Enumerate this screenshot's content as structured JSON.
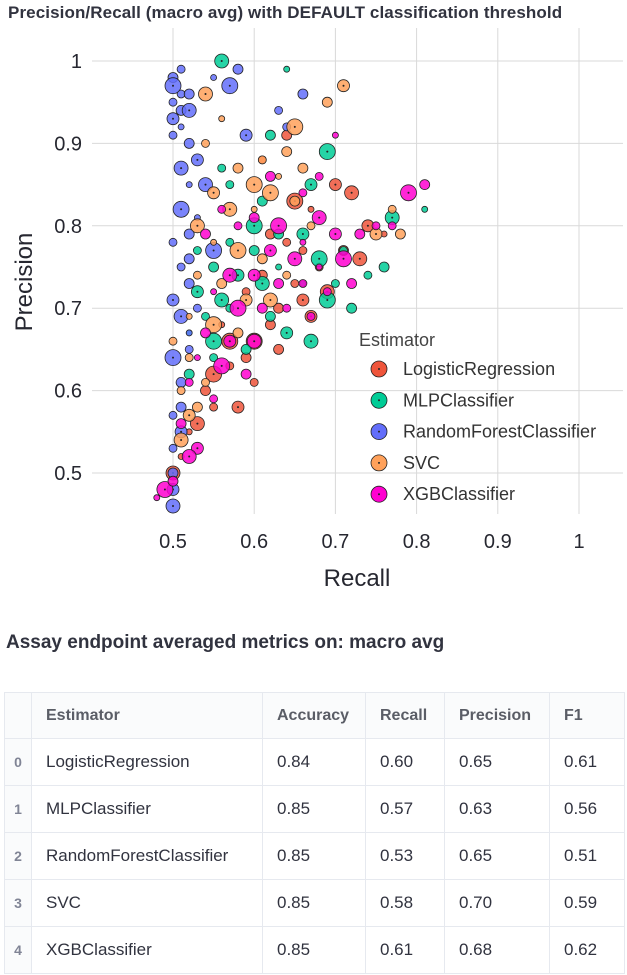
{
  "page": {
    "chart_title": "Precision/Recall (macro avg) with DEFAULT classification threshold",
    "table_title": "Assay endpoint averaged metrics on: macro avg"
  },
  "chart_data": {
    "type": "scatter",
    "xlabel": "Recall",
    "ylabel": "Precision",
    "xlim": [
      0.45,
      0.85
    ],
    "ylim": [
      0.45,
      1.0
    ],
    "xticks": [
      "0.5",
      "0.6",
      "0.7",
      "0.8",
      "0.9",
      "1"
    ],
    "yticks": [
      "0.5",
      "0.6",
      "0.7",
      "0.8",
      "0.9",
      "1"
    ],
    "grid": true,
    "legend_title": "Estimator",
    "legend_position": "right",
    "series": [
      {
        "name": "LogisticRegression",
        "color": "#ef553b",
        "points": [
          [
            0.61,
            0.88
          ],
          [
            0.64,
            0.91
          ],
          [
            0.7,
            0.85
          ],
          [
            0.72,
            0.84
          ],
          [
            0.67,
            0.82
          ],
          [
            0.65,
            0.83
          ],
          [
            0.62,
            0.79
          ],
          [
            0.66,
            0.77
          ],
          [
            0.59,
            0.72
          ],
          [
            0.63,
            0.7
          ],
          [
            0.66,
            0.71
          ],
          [
            0.69,
            0.72
          ],
          [
            0.56,
            0.68
          ],
          [
            0.6,
            0.66
          ],
          [
            0.63,
            0.65
          ],
          [
            0.57,
            0.63
          ],
          [
            0.6,
            0.61
          ],
          [
            0.54,
            0.6
          ],
          [
            0.58,
            0.58
          ],
          [
            0.53,
            0.56
          ],
          [
            0.51,
            0.52
          ],
          [
            0.55,
            0.62
          ],
          [
            0.62,
            0.68
          ],
          [
            0.65,
            0.73
          ],
          [
            0.68,
            0.75
          ],
          [
            0.71,
            0.77
          ],
          [
            0.74,
            0.8
          ],
          [
            0.5,
            0.5
          ],
          [
            0.52,
            0.55
          ],
          [
            0.57,
            0.66
          ],
          [
            0.61,
            0.74
          ],
          [
            0.64,
            0.78
          ],
          [
            0.55,
            0.58
          ],
          [
            0.59,
            0.64
          ],
          [
            0.67,
            0.69
          ],
          [
            0.73,
            0.76
          ],
          [
            0.76,
            0.79
          ]
        ]
      },
      {
        "name": "MLPClassifier",
        "color": "#00cc96",
        "points": [
          [
            0.56,
            1.0
          ],
          [
            0.64,
            0.99
          ],
          [
            0.69,
            0.89
          ],
          [
            0.62,
            0.91
          ],
          [
            0.56,
            0.87
          ],
          [
            0.57,
            0.85
          ],
          [
            0.61,
            0.83
          ],
          [
            0.67,
            0.85
          ],
          [
            0.77,
            0.81
          ],
          [
            0.81,
            0.82
          ],
          [
            0.6,
            0.8
          ],
          [
            0.63,
            0.79
          ],
          [
            0.71,
            0.77
          ],
          [
            0.74,
            0.74
          ],
          [
            0.55,
            0.75
          ],
          [
            0.58,
            0.74
          ],
          [
            0.61,
            0.73
          ],
          [
            0.66,
            0.73
          ],
          [
            0.69,
            0.71
          ],
          [
            0.72,
            0.7
          ],
          [
            0.54,
            0.69
          ],
          [
            0.57,
            0.7
          ],
          [
            0.62,
            0.69
          ],
          [
            0.64,
            0.67
          ],
          [
            0.67,
            0.66
          ],
          [
            0.52,
            0.67
          ],
          [
            0.55,
            0.66
          ],
          [
            0.59,
            0.65
          ],
          [
            0.53,
            0.77
          ],
          [
            0.57,
            0.78
          ],
          [
            0.6,
            0.77
          ],
          [
            0.53,
            0.72
          ],
          [
            0.56,
            0.71
          ],
          [
            0.63,
            0.75
          ],
          [
            0.68,
            0.76
          ],
          [
            0.52,
            0.62
          ],
          [
            0.55,
            0.64
          ],
          [
            0.7,
            0.73
          ],
          [
            0.76,
            0.75
          ],
          [
            0.66,
            0.79
          ]
        ]
      },
      {
        "name": "RandomForestClassifier",
        "color": "#636efa",
        "points": [
          [
            0.5,
            0.98
          ],
          [
            0.51,
            0.96
          ],
          [
            0.5,
            0.95
          ],
          [
            0.51,
            0.94
          ],
          [
            0.5,
            0.93
          ],
          [
            0.52,
            0.94
          ],
          [
            0.51,
            0.92
          ],
          [
            0.5,
            0.97
          ],
          [
            0.52,
            0.96
          ],
          [
            0.51,
            0.99
          ],
          [
            0.5,
            0.91
          ],
          [
            0.52,
            0.9
          ],
          [
            0.53,
            0.88
          ],
          [
            0.51,
            0.87
          ],
          [
            0.52,
            0.85
          ],
          [
            0.51,
            0.82
          ],
          [
            0.52,
            0.79
          ],
          [
            0.5,
            0.78
          ],
          [
            0.51,
            0.75
          ],
          [
            0.52,
            0.73
          ],
          [
            0.5,
            0.71
          ],
          [
            0.51,
            0.69
          ],
          [
            0.52,
            0.67
          ],
          [
            0.5,
            0.64
          ],
          [
            0.51,
            0.61
          ],
          [
            0.5,
            0.57
          ],
          [
            0.5,
            0.53
          ],
          [
            0.5,
            0.5
          ],
          [
            0.5,
            0.48
          ],
          [
            0.5,
            0.46
          ],
          [
            0.55,
            0.98
          ],
          [
            0.57,
            0.97
          ],
          [
            0.58,
            0.99
          ],
          [
            0.63,
            0.94
          ],
          [
            0.64,
            0.92
          ],
          [
            0.66,
            0.96
          ],
          [
            0.59,
            0.91
          ],
          [
            0.54,
            0.85
          ],
          [
            0.53,
            0.81
          ],
          [
            0.55,
            0.77
          ],
          [
            0.52,
            0.76
          ],
          [
            0.53,
            0.7
          ],
          [
            0.52,
            0.65
          ],
          [
            0.51,
            0.58
          ],
          [
            0.51,
            0.55
          ]
        ]
      },
      {
        "name": "SVC",
        "color": "#ffa15a",
        "points": [
          [
            0.69,
            0.95
          ],
          [
            0.71,
            0.97
          ],
          [
            0.54,
            0.96
          ],
          [
            0.56,
            0.93
          ],
          [
            0.65,
            0.92
          ],
          [
            0.64,
            0.89
          ],
          [
            0.61,
            0.88
          ],
          [
            0.54,
            0.9
          ],
          [
            0.58,
            0.87
          ],
          [
            0.55,
            0.84
          ],
          [
            0.57,
            0.82
          ],
          [
            0.6,
            0.82
          ],
          [
            0.62,
            0.84
          ],
          [
            0.65,
            0.83
          ],
          [
            0.67,
            0.8
          ],
          [
            0.77,
            0.82
          ],
          [
            0.78,
            0.79
          ],
          [
            0.75,
            0.79
          ],
          [
            0.53,
            0.8
          ],
          [
            0.55,
            0.78
          ],
          [
            0.58,
            0.77
          ],
          [
            0.61,
            0.76
          ],
          [
            0.64,
            0.74
          ],
          [
            0.53,
            0.74
          ],
          [
            0.56,
            0.73
          ],
          [
            0.59,
            0.71
          ],
          [
            0.62,
            0.71
          ],
          [
            0.52,
            0.69
          ],
          [
            0.55,
            0.68
          ],
          [
            0.58,
            0.67
          ],
          [
            0.52,
            0.64
          ],
          [
            0.54,
            0.61
          ],
          [
            0.53,
            0.58
          ],
          [
            0.52,
            0.57
          ],
          [
            0.51,
            0.54
          ],
          [
            0.63,
            0.86
          ],
          [
            0.6,
            0.85
          ],
          [
            0.66,
            0.87
          ],
          [
            0.5,
            0.66
          ],
          [
            0.51,
            0.6
          ]
        ]
      },
      {
        "name": "XGBClassifier",
        "color": "#ff00d0",
        "points": [
          [
            0.7,
            0.91
          ],
          [
            0.79,
            0.84
          ],
          [
            0.81,
            0.85
          ],
          [
            0.77,
            0.8
          ],
          [
            0.75,
            0.8
          ],
          [
            0.73,
            0.79
          ],
          [
            0.7,
            0.79
          ],
          [
            0.68,
            0.81
          ],
          [
            0.66,
            0.78
          ],
          [
            0.63,
            0.8
          ],
          [
            0.6,
            0.81
          ],
          [
            0.58,
            0.8
          ],
          [
            0.56,
            0.82
          ],
          [
            0.54,
            0.79
          ],
          [
            0.62,
            0.77
          ],
          [
            0.65,
            0.76
          ],
          [
            0.68,
            0.75
          ],
          [
            0.71,
            0.76
          ],
          [
            0.72,
            0.73
          ],
          [
            0.69,
            0.72
          ],
          [
            0.66,
            0.73
          ],
          [
            0.63,
            0.73
          ],
          [
            0.6,
            0.74
          ],
          [
            0.57,
            0.74
          ],
          [
            0.55,
            0.72
          ],
          [
            0.58,
            0.7
          ],
          [
            0.61,
            0.7
          ],
          [
            0.64,
            0.7
          ],
          [
            0.67,
            0.69
          ],
          [
            0.54,
            0.67
          ],
          [
            0.57,
            0.66
          ],
          [
            0.6,
            0.66
          ],
          [
            0.53,
            0.64
          ],
          [
            0.56,
            0.63
          ],
          [
            0.59,
            0.62
          ],
          [
            0.52,
            0.61
          ],
          [
            0.55,
            0.59
          ],
          [
            0.51,
            0.56
          ],
          [
            0.53,
            0.53
          ],
          [
            0.52,
            0.52
          ],
          [
            0.48,
            0.47
          ],
          [
            0.49,
            0.48
          ],
          [
            0.5,
            0.49
          ],
          [
            0.66,
            0.84
          ],
          [
            0.68,
            0.86
          ],
          [
            0.62,
            0.86
          ]
        ]
      }
    ]
  },
  "table": {
    "columns": [
      "",
      "Estimator",
      "Accuracy",
      "Recall",
      "Precision",
      "F1"
    ],
    "rows": [
      [
        "0",
        "LogisticRegression",
        "0.84",
        "0.60",
        "0.65",
        "0.61"
      ],
      [
        "1",
        "MLPClassifier",
        "0.85",
        "0.57",
        "0.63",
        "0.56"
      ],
      [
        "2",
        "RandomForestClassifier",
        "0.85",
        "0.53",
        "0.65",
        "0.51"
      ],
      [
        "3",
        "SVC",
        "0.85",
        "0.58",
        "0.70",
        "0.59"
      ],
      [
        "4",
        "XGBClassifier",
        "0.85",
        "0.61",
        "0.68",
        "0.62"
      ]
    ]
  }
}
